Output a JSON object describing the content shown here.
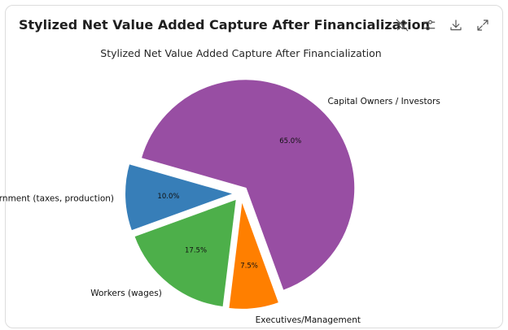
{
  "card": {
    "title": "Stylized Net Value Added Capture After Financialization"
  },
  "toolbar": {
    "icons": [
      "pin-off-icon",
      "sliders-icon",
      "download-icon",
      "expand-icon"
    ]
  },
  "chart_data": {
    "type": "pie",
    "title": "Stylized Net Value Added Capture After Financialization",
    "categories": [
      "Capital Owners / Investors",
      "Government (taxes, production)",
      "Workers (wages)",
      "Executives/Management"
    ],
    "values": [
      65.0,
      10.0,
      17.5,
      7.5
    ],
    "labels_pct": [
      "65.0%",
      "10.0%",
      "17.5%",
      "7.5%"
    ],
    "colors": [
      "#984ea3",
      "#377eb8",
      "#4daf4a",
      "#ff7f00"
    ],
    "exploded": true,
    "start_angle_deg": -70,
    "direction": "counterclockwise"
  }
}
